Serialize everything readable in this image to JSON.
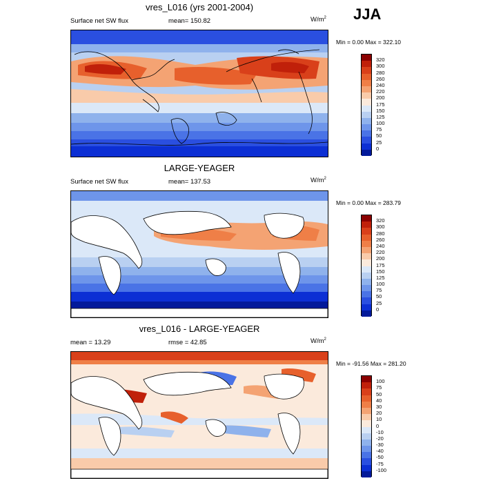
{
  "season": "JJA",
  "panels": [
    {
      "title": "vres_L016 (yrs 2001-2004)",
      "left_label": "Surface net SW flux",
      "mean_label": "mean= 150.82",
      "units_base": "W/m",
      "units_exp": "2",
      "minmax": "Min =   0.00 Max = 322.10",
      "colorbar": {
        "labels": [
          "320",
          "300",
          "280",
          "260",
          "240",
          "220",
          "200",
          "175",
          "150",
          "125",
          "100",
          "75",
          "50",
          "25",
          "0"
        ],
        "colors": [
          "#8b0000",
          "#c0200a",
          "#d9401a",
          "#e7602c",
          "#ef7f47",
          "#f4a373",
          "#f9cbaa",
          "#fbeadc",
          "#dbe8f8",
          "#b9d0f1",
          "#8fb2ec",
          "#6e95ea",
          "#4a73e6",
          "#2a4fe0",
          "#0c2fd4",
          "#031a9a"
        ]
      }
    },
    {
      "title": "LARGE-YEAGER",
      "left_label": "Surface net SW flux",
      "mean_label": "mean= 137.53",
      "units_base": "W/m",
      "units_exp": "2",
      "minmax": "Min =   0.00 Max = 283.79",
      "colorbar": {
        "labels": [
          "320",
          "300",
          "280",
          "260",
          "240",
          "220",
          "200",
          "175",
          "150",
          "125",
          "100",
          "75",
          "50",
          "25",
          "0"
        ],
        "colors": [
          "#8b0000",
          "#c0200a",
          "#d9401a",
          "#e7602c",
          "#ef7f47",
          "#f4a373",
          "#f9cbaa",
          "#fbeadc",
          "#dbe8f8",
          "#b9d0f1",
          "#8fb2ec",
          "#6e95ea",
          "#4a73e6",
          "#2a4fe0",
          "#0c2fd4",
          "#031a9a"
        ]
      }
    },
    {
      "title": "vres_L016 - LARGE-YEAGER",
      "left_label": "mean =  13.29",
      "mean_label": "rmse =  42.85",
      "units_base": "W/m",
      "units_exp": "2",
      "minmax": "Min = -91.56 Max = 281.20",
      "colorbar": {
        "labels": [
          "100",
          "75",
          "50",
          "40",
          "30",
          "20",
          "10",
          "0",
          "-10",
          "-20",
          "-30",
          "-40",
          "-50",
          "-75",
          "-100"
        ],
        "colors": [
          "#8b0000",
          "#c0200a",
          "#d9401a",
          "#e7602c",
          "#ef7f47",
          "#f4a373",
          "#f9cbaa",
          "#fbeadc",
          "#dbe8f8",
          "#b9d0f1",
          "#8fb2ec",
          "#6e95ea",
          "#4a73e6",
          "#2a4fe0",
          "#0c2fd4",
          "#031a9a"
        ]
      }
    }
  ]
}
